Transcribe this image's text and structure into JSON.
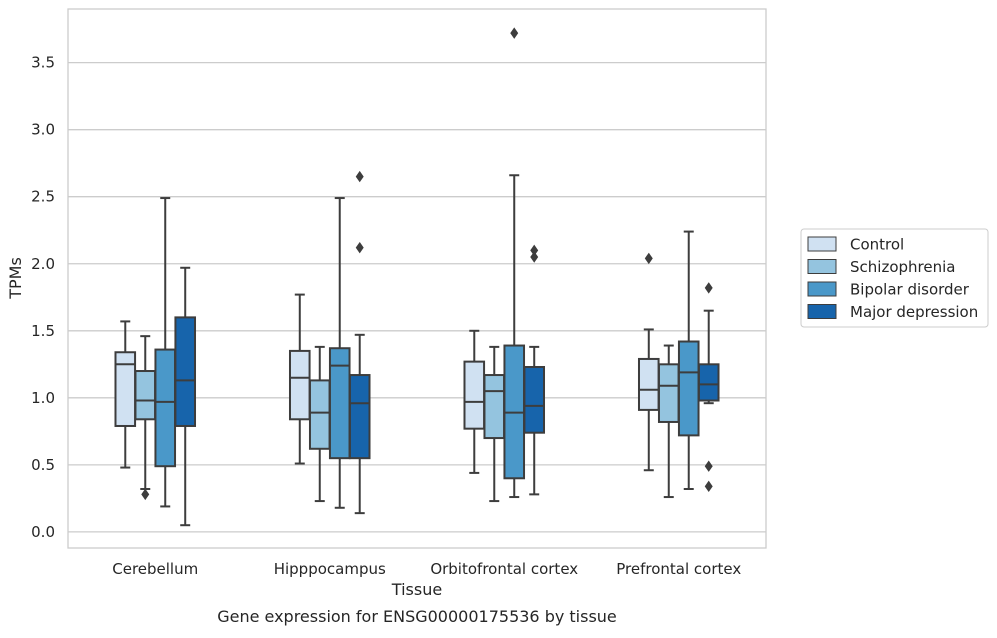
{
  "chart_data": {
    "type": "box",
    "xlabel": "Tissue",
    "ylabel": "TPMs",
    "caption": "Gene expression for ENSG00000175536 by tissue",
    "ylim": [
      -0.12,
      3.9
    ],
    "yticks": [
      "0.0",
      "0.5",
      "1.0",
      "1.5",
      "2.0",
      "2.5",
      "3.0",
      "3.5"
    ],
    "grid": "horizontal",
    "legend_position": "right",
    "categories": [
      "Cerebellum",
      "Hipppocampus",
      "Orbitofrontal cortex",
      "Prefrontal cortex"
    ],
    "series": [
      {
        "name": "Control",
        "color": "#d0e1f2",
        "boxes": [
          {
            "whislo": 0.48,
            "q1": 0.79,
            "med": 1.25,
            "q3": 1.34,
            "whishi": 1.57,
            "fliers": []
          },
          {
            "whislo": 0.51,
            "q1": 0.84,
            "med": 1.15,
            "q3": 1.35,
            "whishi": 1.77,
            "fliers": []
          },
          {
            "whislo": 0.44,
            "q1": 0.77,
            "med": 0.97,
            "q3": 1.27,
            "whishi": 1.5,
            "fliers": []
          },
          {
            "whislo": 0.46,
            "q1": 0.91,
            "med": 1.06,
            "q3": 1.29,
            "whishi": 1.51,
            "fliers": [
              2.04
            ]
          }
        ]
      },
      {
        "name": "Schizophrenia",
        "color": "#94c4df",
        "boxes": [
          {
            "whislo": 0.32,
            "q1": 0.84,
            "med": 0.98,
            "q3": 1.2,
            "whishi": 1.46,
            "fliers": [
              0.28
            ]
          },
          {
            "whislo": 0.23,
            "q1": 0.62,
            "med": 0.89,
            "q3": 1.13,
            "whishi": 1.38,
            "fliers": []
          },
          {
            "whislo": 0.23,
            "q1": 0.7,
            "med": 1.05,
            "q3": 1.17,
            "whishi": 1.38,
            "fliers": []
          },
          {
            "whislo": 0.26,
            "q1": 0.82,
            "med": 1.09,
            "q3": 1.25,
            "whishi": 1.39,
            "fliers": []
          }
        ]
      },
      {
        "name": "Bipolar disorder",
        "color": "#4a98c9",
        "boxes": [
          {
            "whislo": 0.19,
            "q1": 0.49,
            "med": 0.97,
            "q3": 1.36,
            "whishi": 2.49,
            "fliers": []
          },
          {
            "whislo": 0.18,
            "q1": 0.55,
            "med": 1.24,
            "q3": 1.37,
            "whishi": 2.49,
            "fliers": []
          },
          {
            "whislo": 0.26,
            "q1": 0.4,
            "med": 0.89,
            "q3": 1.39,
            "whishi": 2.66,
            "fliers": [
              3.72
            ]
          },
          {
            "whislo": 0.32,
            "q1": 0.72,
            "med": 1.19,
            "q3": 1.42,
            "whishi": 2.24,
            "fliers": []
          }
        ]
      },
      {
        "name": "Major depression",
        "color": "#1764ab",
        "boxes": [
          {
            "whislo": 0.05,
            "q1": 0.79,
            "med": 1.13,
            "q3": 1.6,
            "whishi": 1.97,
            "fliers": []
          },
          {
            "whislo": 0.14,
            "q1": 0.55,
            "med": 0.96,
            "q3": 1.17,
            "whishi": 1.47,
            "fliers": [
              2.12,
              2.65
            ]
          },
          {
            "whislo": 0.28,
            "q1": 0.74,
            "med": 0.94,
            "q3": 1.23,
            "whishi": 1.38,
            "fliers": [
              2.05,
              2.1
            ]
          },
          {
            "whislo": 0.96,
            "q1": 0.98,
            "med": 1.1,
            "q3": 1.25,
            "whishi": 1.65,
            "fliers": [
              0.34,
              0.49,
              1.82
            ]
          }
        ]
      }
    ]
  }
}
